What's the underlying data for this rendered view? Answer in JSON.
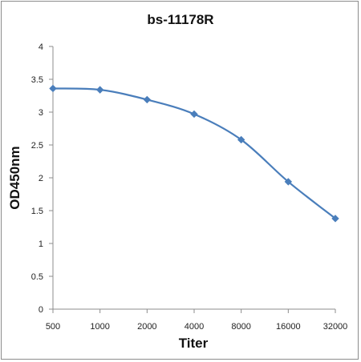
{
  "chart_data": {
    "type": "line",
    "title": "bs-11178R",
    "xlabel": "Titer",
    "ylabel": "OD450nm",
    "categories": [
      "500",
      "1000",
      "2000",
      "4000",
      "8000",
      "16000",
      "32000"
    ],
    "series": [
      {
        "values": [
          3.36,
          3.34,
          3.19,
          2.97,
          2.58,
          1.94,
          1.38
        ]
      }
    ],
    "ylim": [
      0,
      4
    ],
    "yticks": [
      "0",
      "0.5",
      "1",
      "1.5",
      "2",
      "2.5",
      "3",
      "3.5",
      "4"
    ],
    "grid": false,
    "legend": "none",
    "colors": {
      "series": "#4a7ebb",
      "axis": "#8c8c8c",
      "border": "#8c8c8c"
    }
  }
}
